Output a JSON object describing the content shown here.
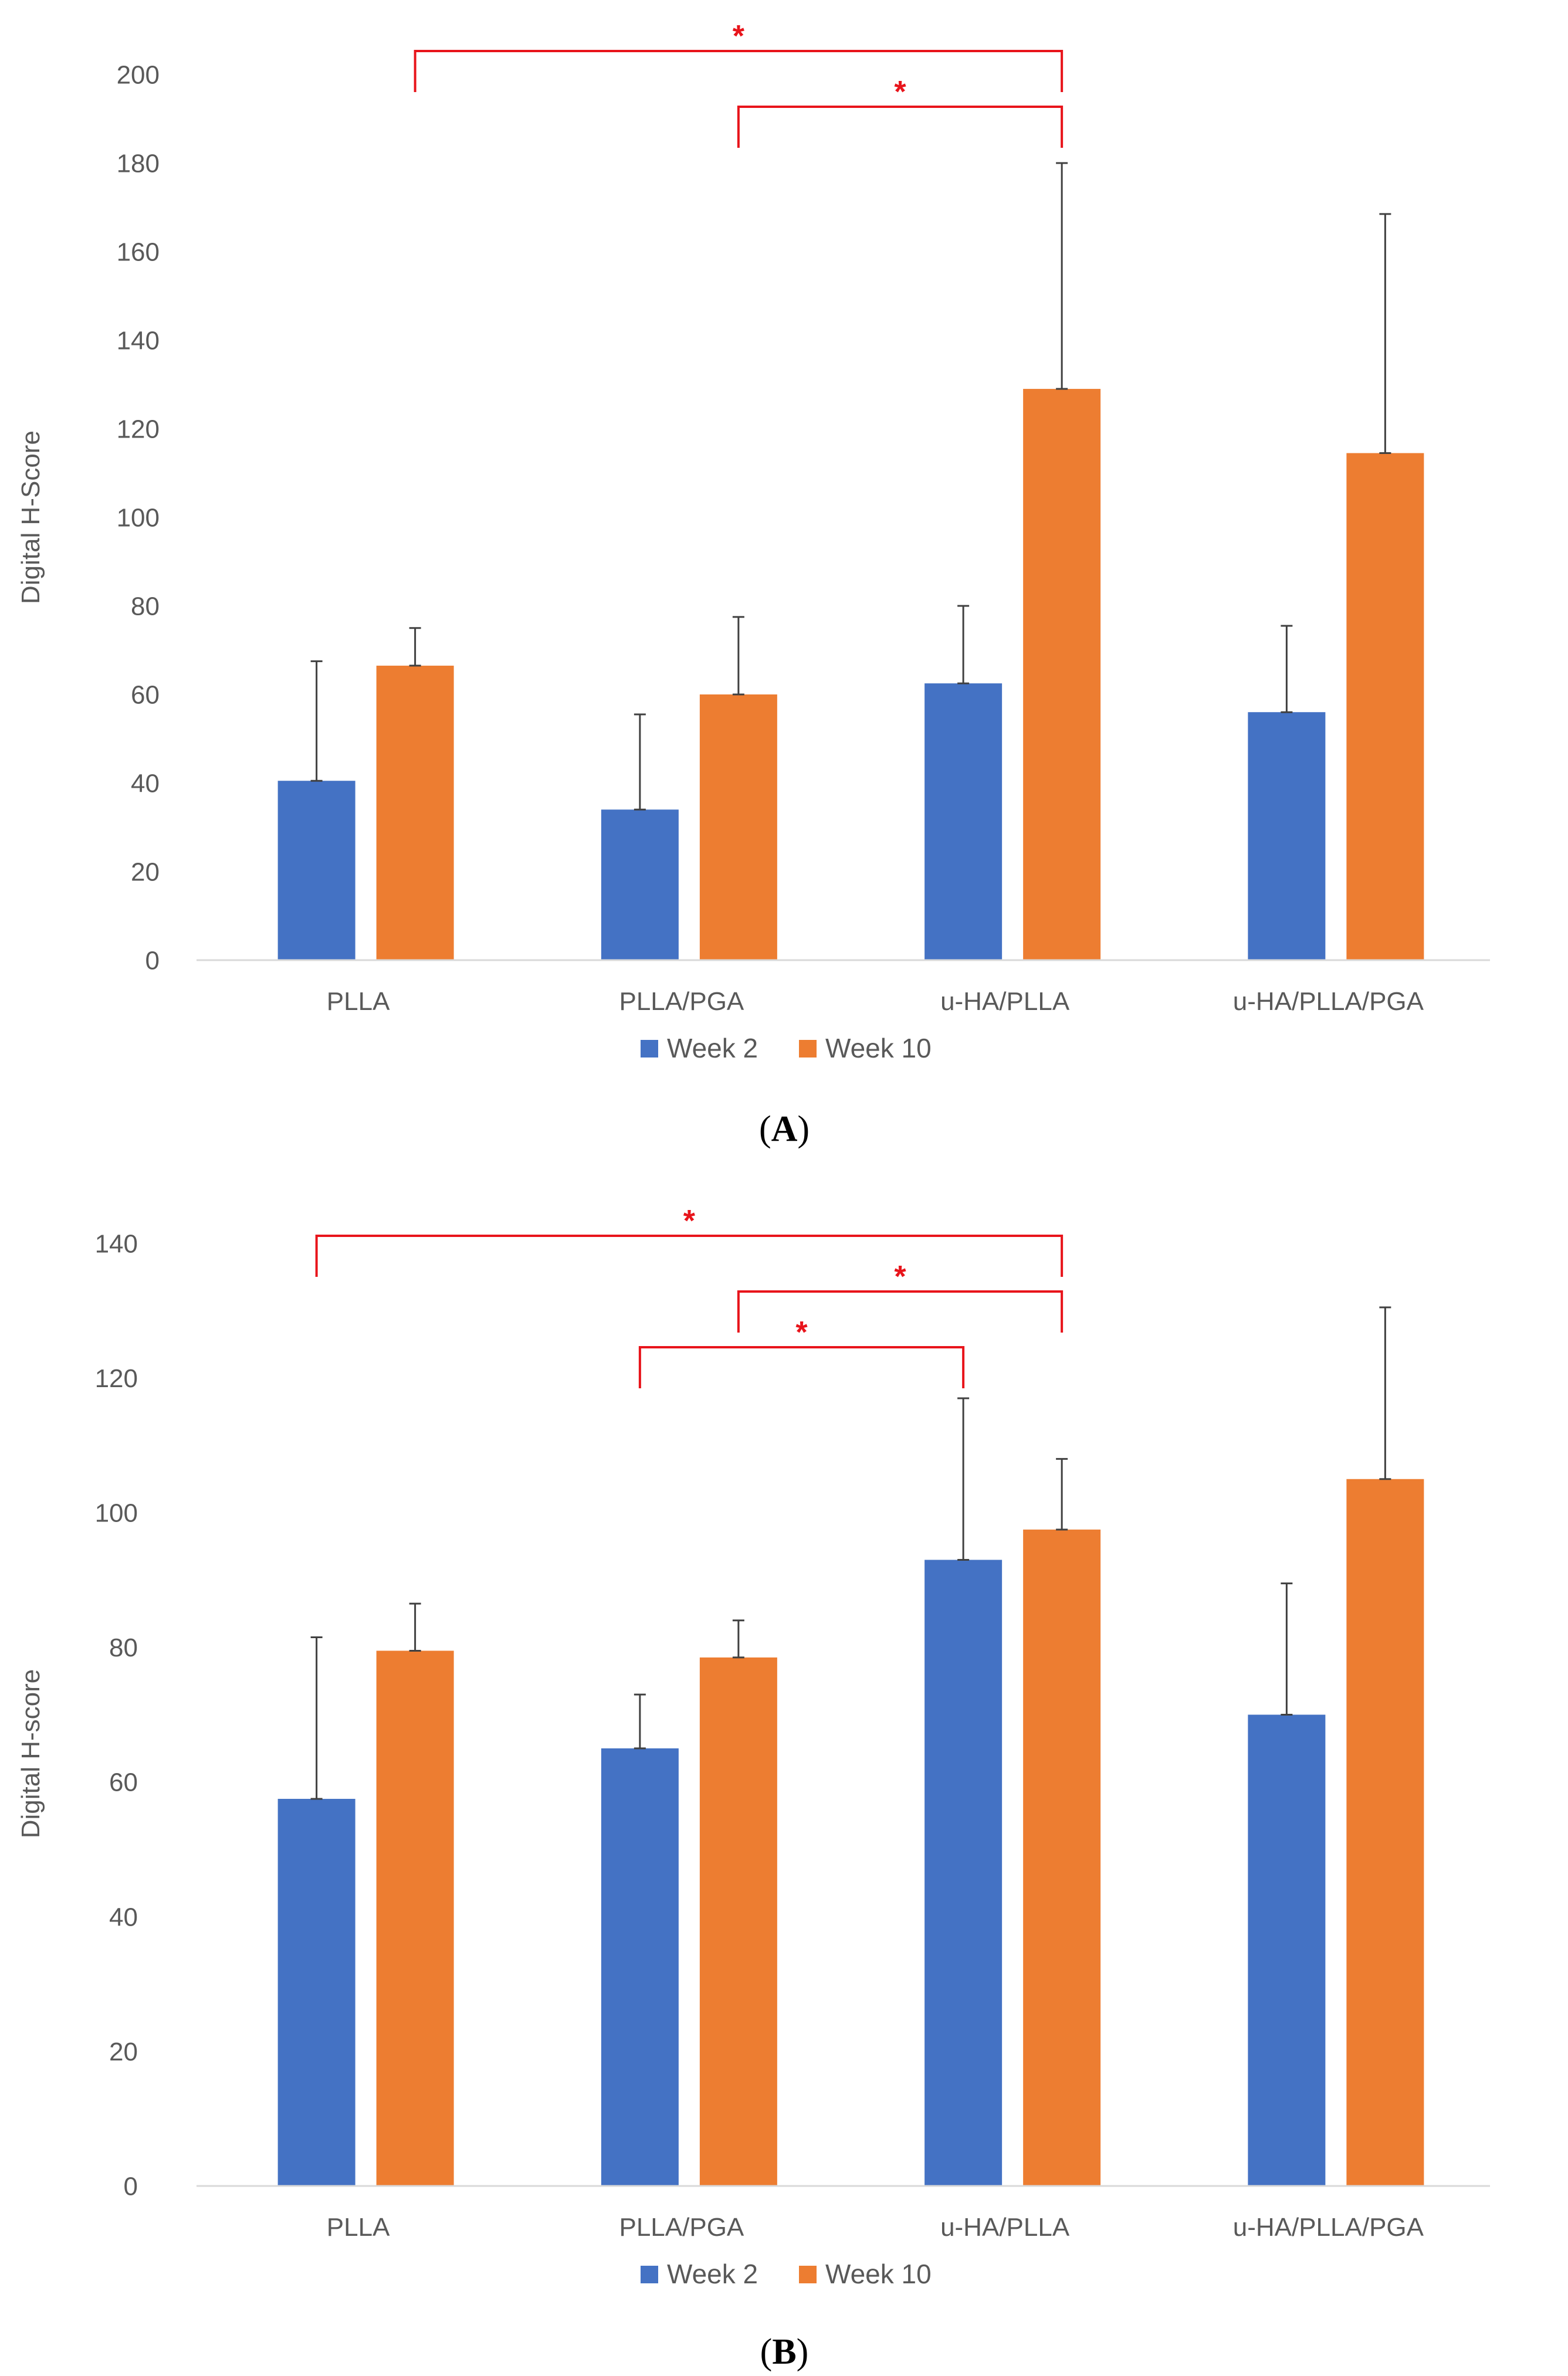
{
  "colors": {
    "week2": "#4472C4",
    "week10": "#ED7D31",
    "axis": "#D9D9D9",
    "text": "#595959",
    "error": "#404040",
    "significance": "#E8141B"
  },
  "legend_marker_icon": "square-legend-marker",
  "chart_data": [
    {
      "type": "bar",
      "panel_label": "A",
      "title": "",
      "xlabel": "",
      "ylabel": "Digital H-Score",
      "ylim": [
        0,
        200
      ],
      "yticks": [
        0,
        20,
        40,
        60,
        80,
        100,
        120,
        140,
        160,
        180,
        200
      ],
      "grid": false,
      "legend_position": "bottom",
      "categories": [
        "PLLA",
        "PLLA/PGA",
        "u-HA/PLLA",
        "u-HA/PLLA/PGA"
      ],
      "series": [
        {
          "name": "Week 2",
          "values": [
            40.5,
            34,
            62.5,
            56
          ],
          "error": [
            27,
            21.5,
            17.5,
            19.5
          ]
        },
        {
          "name": "Week 10",
          "values": [
            66.5,
            60,
            129,
            114.5
          ],
          "error": [
            8.5,
            17.5,
            51,
            54
          ]
        }
      ],
      "significance": [
        {
          "from": "PLLA",
          "to": "u-HA/PLLA",
          "from_series": 1,
          "to_series": 1,
          "label": "*"
        },
        {
          "from": "PLLA/PGA",
          "to": "u-HA/PLLA",
          "from_series": 1,
          "to_series": 1,
          "label": "*"
        }
      ]
    },
    {
      "type": "bar",
      "panel_label": "B",
      "title": "",
      "xlabel": "",
      "ylabel": "Digital H-score",
      "ylim": [
        0,
        140
      ],
      "yticks": [
        0,
        20,
        40,
        60,
        80,
        100,
        120,
        140
      ],
      "grid": false,
      "legend_position": "bottom",
      "categories": [
        "PLLA",
        "PLLA/PGA",
        "u-HA/PLLA",
        "u-HA/PLLA/PGA"
      ],
      "series": [
        {
          "name": "Week 2",
          "values": [
            57.5,
            65,
            93,
            70
          ],
          "error": [
            24,
            8,
            24,
            19.5
          ]
        },
        {
          "name": "Week 10",
          "values": [
            79.5,
            78.5,
            97.5,
            105
          ],
          "error": [
            7,
            5.5,
            10.5,
            25.5
          ]
        }
      ],
      "significance": [
        {
          "from": "PLLA",
          "to": "u-HA/PLLA",
          "from_series": 0,
          "to_series": 1,
          "label": "*"
        },
        {
          "from": "PLLA/PGA",
          "to": "u-HA/PLLA",
          "from_series": 1,
          "to_series": 1,
          "label": "*"
        },
        {
          "from": "PLLA/PGA",
          "to": "u-HA/PLLA",
          "from_series": 0,
          "to_series": 0,
          "label": "*"
        }
      ]
    }
  ]
}
